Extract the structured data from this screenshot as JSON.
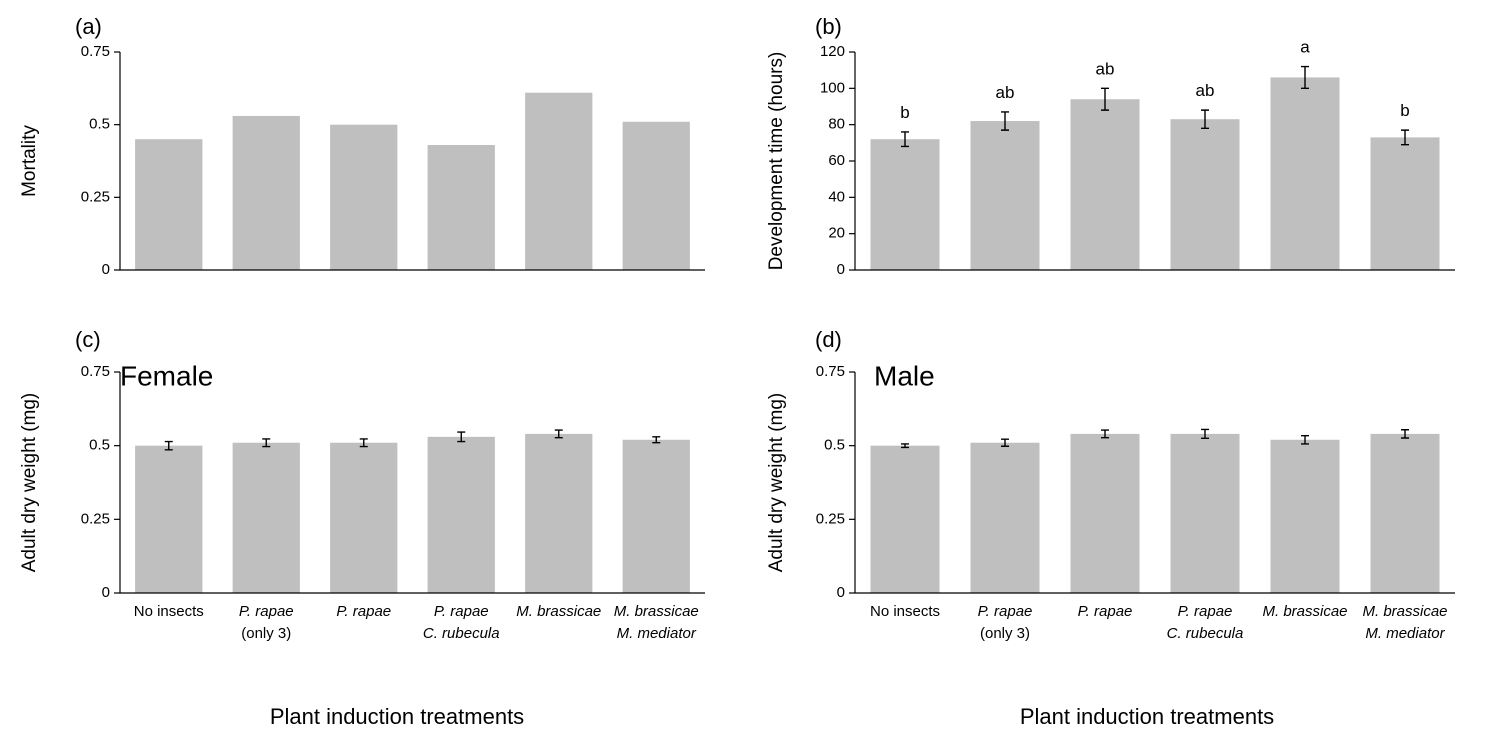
{
  "colors": {
    "bar": "#bfbfbf",
    "axis": "#000000"
  },
  "figure": {
    "xlabel_left": "Plant induction treatments",
    "xlabel_right": "Plant induction treatments"
  },
  "categories": [
    [
      "No insects"
    ],
    [
      "P. rapae",
      "(only 3)"
    ],
    [
      "P. rapae"
    ],
    [
      "P. rapae",
      "C. rubecula"
    ],
    [
      "M. brassicae"
    ],
    [
      "M. brassicae",
      "M. mediator"
    ]
  ],
  "chart_data": [
    {
      "panel": "(a)",
      "type": "bar",
      "annotation": "",
      "ylabel": "Mortality",
      "ylim": [
        0,
        0.75
      ],
      "yticks": [
        "0",
        "0.25",
        "0.5",
        "0.75"
      ],
      "values": [
        0.45,
        0.53,
        0.5,
        0.43,
        0.61,
        0.51
      ],
      "errors": null,
      "letters": null,
      "show_categories": false
    },
    {
      "panel": "(b)",
      "type": "bar",
      "annotation": "",
      "ylabel": "Development time (hours)",
      "ylim": [
        0,
        120
      ],
      "yticks": [
        "0",
        "20",
        "40",
        "60",
        "80",
        "100",
        "120"
      ],
      "values": [
        72,
        82,
        94,
        83,
        106,
        73
      ],
      "errors": [
        4,
        5,
        6,
        5,
        6,
        4
      ],
      "letters": [
        "b",
        "ab",
        "ab",
        "ab",
        "a",
        "b"
      ],
      "show_categories": false
    },
    {
      "panel": "(c)",
      "type": "bar",
      "annotation": "Female",
      "ylabel": "Adult dry weight (mg)",
      "ylim": [
        0,
        0.75
      ],
      "yticks": [
        "0",
        "0.25",
        "0.5",
        "0.75"
      ],
      "values": [
        0.5,
        0.51,
        0.51,
        0.53,
        0.54,
        0.52
      ],
      "errors": [
        0.014,
        0.013,
        0.013,
        0.016,
        0.013,
        0.01
      ],
      "letters": null,
      "show_categories": true
    },
    {
      "panel": "(d)",
      "type": "bar",
      "annotation": "Male",
      "ylabel": "Adult dry weight (mg)",
      "ylim": [
        0,
        0.75
      ],
      "yticks": [
        "0",
        "0.25",
        "0.5",
        "0.75"
      ],
      "values": [
        0.5,
        0.51,
        0.54,
        0.54,
        0.52,
        0.54
      ],
      "errors": [
        0.006,
        0.012,
        0.013,
        0.015,
        0.014,
        0.014
      ],
      "letters": null,
      "show_categories": true
    }
  ]
}
